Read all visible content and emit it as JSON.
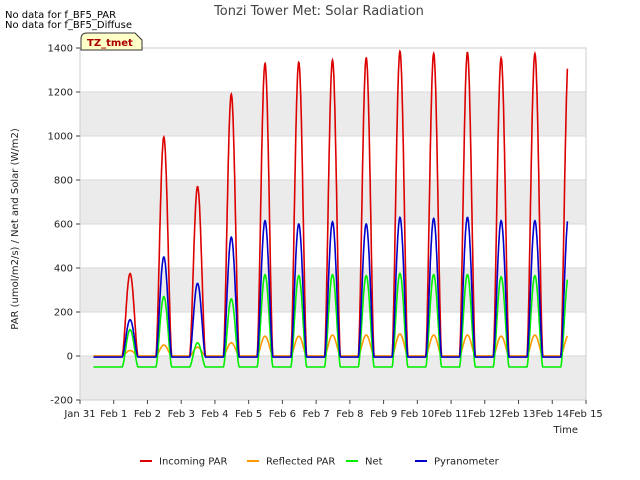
{
  "chart_data": {
    "type": "line",
    "title": "Tonzi Tower Met: Solar Radiation",
    "xlabel": "Time",
    "ylabel": "PAR (umol/m2/s) / Net and Solar (W/m2)",
    "ylim": [
      -200,
      1400
    ],
    "yticks": [
      -200,
      0,
      200,
      400,
      600,
      800,
      1000,
      1200,
      1400
    ],
    "xlim": [
      0,
      15
    ],
    "xticks": [
      0,
      1,
      2,
      3,
      4,
      5,
      6,
      7,
      8,
      9,
      10,
      11,
      12,
      13,
      14,
      15
    ],
    "xtick_labels": [
      "Jan 31",
      "Feb 1",
      "Feb 2",
      "Feb 3",
      "Feb 4",
      "Feb 5",
      "Feb 6",
      "Feb 7",
      "Feb 8",
      "Feb 9",
      "Feb 10",
      "Feb 11",
      "Feb 12",
      "Feb 13",
      "Feb 14",
      "Feb 15"
    ],
    "grid": true,
    "background_bands": true,
    "legend_position": "bottom",
    "notes": [
      "No data for f_BF5_PAR",
      "No data for f_BF5_Diffuse"
    ],
    "site_label": "TZ_tmet",
    "day_start": 0.4,
    "day_end": 14.45,
    "series": [
      {
        "name": "Incoming PAR",
        "color": "#dd0000",
        "night": 0,
        "peaks": [
          375,
          995,
          770,
          1190,
          1330,
          1335,
          1345,
          1355,
          1385,
          1375,
          1380,
          1355,
          1375,
          1365
        ]
      },
      {
        "name": "Reflected PAR",
        "color": "#ff9900",
        "night": 0,
        "peaks": [
          25,
          50,
          40,
          60,
          90,
          90,
          95,
          95,
          100,
          95,
          95,
          90,
          95,
          95
        ]
      },
      {
        "name": "Net",
        "color": "#00ee00",
        "night": -50,
        "peaks": [
          120,
          270,
          60,
          260,
          370,
          365,
          370,
          365,
          375,
          370,
          370,
          360,
          365,
          365
        ]
      },
      {
        "name": "Pyranometer",
        "color": "#0000cc",
        "night": -5,
        "peaks": [
          165,
          450,
          330,
          540,
          615,
          600,
          610,
          600,
          630,
          625,
          630,
          615,
          615,
          640
        ]
      }
    ]
  }
}
